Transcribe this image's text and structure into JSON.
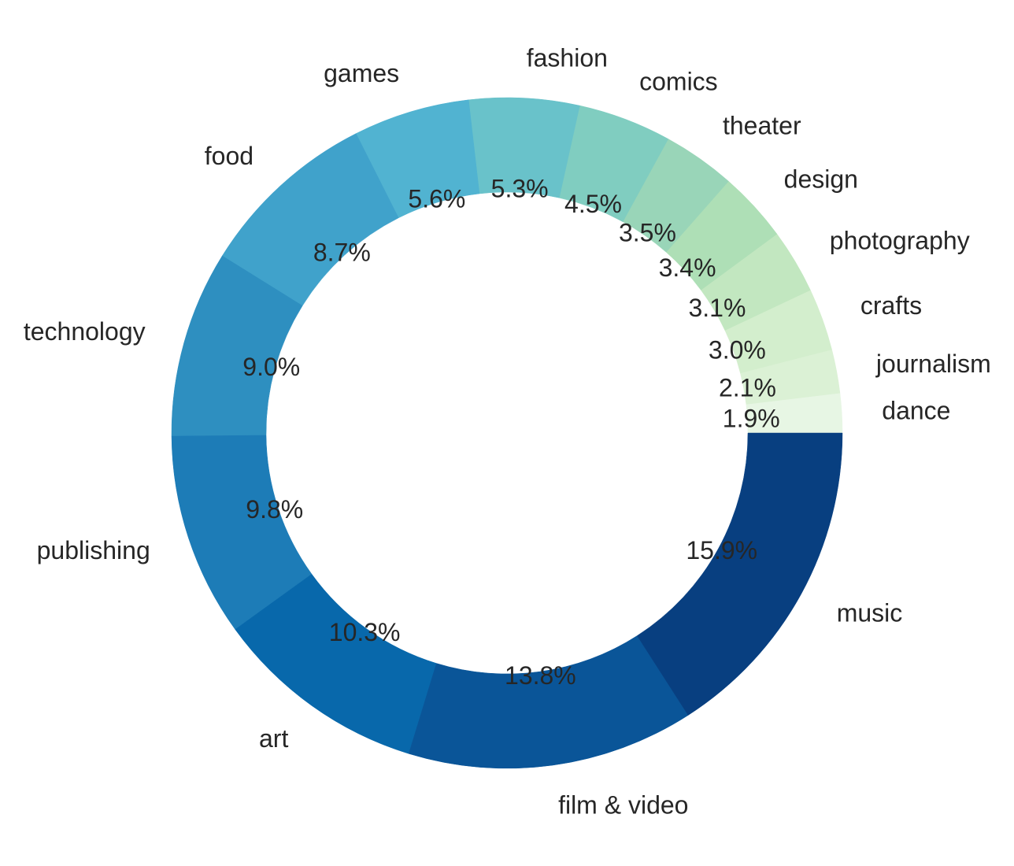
{
  "chart_data": {
    "type": "pie",
    "style": "donut",
    "start": "counterclockwise from the right (3 o'clock)",
    "slices": [
      {
        "label": "dance",
        "value": 1.9,
        "pct_label": "1.9%",
        "color": "#e7f6e4"
      },
      {
        "label": "journalism",
        "value": 2.1,
        "pct_label": "2.1%",
        "color": "#dbf1d5"
      },
      {
        "label": "crafts",
        "value": 3.0,
        "pct_label": "3.0%",
        "color": "#d3eecd"
      },
      {
        "label": "photography",
        "value": 3.1,
        "pct_label": "3.1%",
        "color": "#c2e7c0"
      },
      {
        "label": "design",
        "value": 3.4,
        "pct_label": "3.4%",
        "color": "#aedfb6"
      },
      {
        "label": "theater",
        "value": 3.5,
        "pct_label": "3.5%",
        "color": "#99d5b8"
      },
      {
        "label": "comics",
        "value": 4.5,
        "pct_label": "4.5%",
        "color": "#80cdc0"
      },
      {
        "label": "fashion",
        "value": 5.3,
        "pct_label": "5.3%",
        "color": "#69c2ca"
      },
      {
        "label": "games",
        "value": 5.6,
        "pct_label": "5.6%",
        "color": "#51b3d1"
      },
      {
        "label": "food",
        "value": 8.7,
        "pct_label": "8.7%",
        "color": "#40a2cb"
      },
      {
        "label": "technology",
        "value": 9.0,
        "pct_label": "9.0%",
        "color": "#2e8fc0"
      },
      {
        "label": "publishing",
        "value": 9.8,
        "pct_label": "9.8%",
        "color": "#1d7cb7"
      },
      {
        "label": "art",
        "value": 10.3,
        "pct_label": "10.3%",
        "color": "#0868ab"
      },
      {
        "label": "film & video",
        "value": 13.8,
        "pct_label": "13.8%",
        "color": "#0a5598"
      },
      {
        "label": "music",
        "value": 15.9,
        "pct_label": "15.9%",
        "color": "#083f80"
      }
    ]
  }
}
